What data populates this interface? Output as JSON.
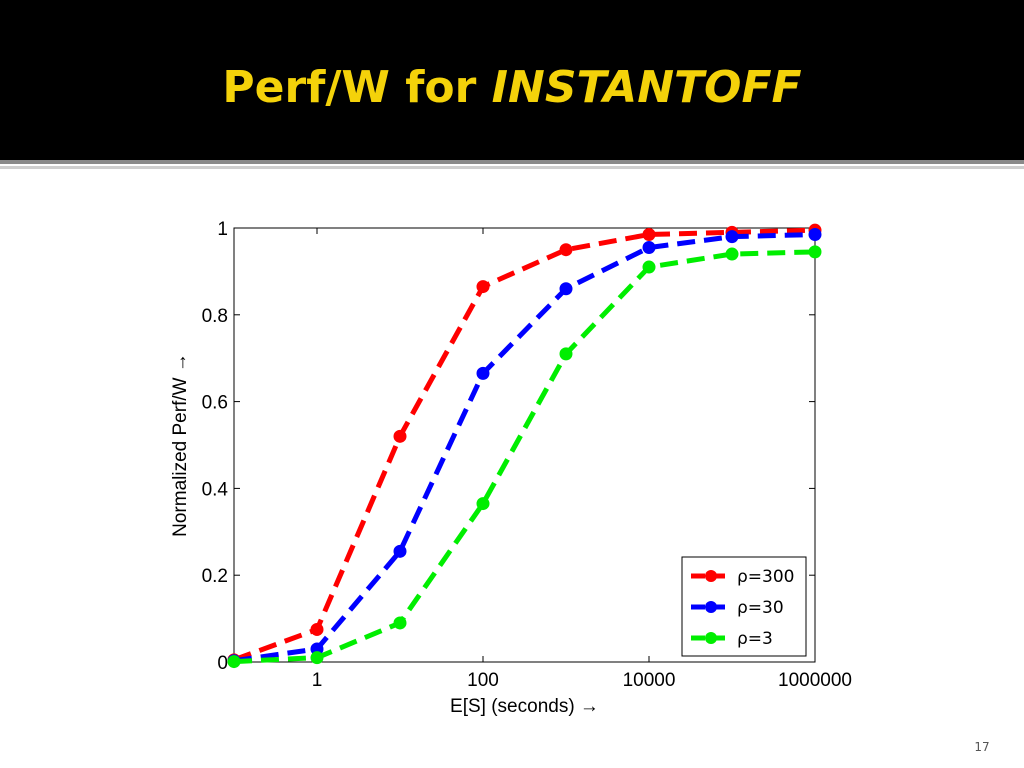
{
  "slide": {
    "title_prefix": "Perf/W for ",
    "title_emphasis": "INSTANTOFF",
    "number": "17"
  },
  "colors": {
    "title": "#f4d20a",
    "title_bar": "#000000",
    "series": [
      "#ff0000",
      "#0000ff",
      "#00ee00"
    ]
  },
  "chart_data": {
    "type": "line",
    "xscale": "log",
    "xlabel": "E[S] (seconds) →",
    "ylabel": "Normalized Perf/W →",
    "xlim": [
      0.1,
      1000000
    ],
    "ylim": [
      0,
      1
    ],
    "xticks": [
      1,
      100,
      10000,
      1000000
    ],
    "xtick_labels": [
      "1",
      "100",
      "10000",
      "1000000"
    ],
    "yticks": [
      0,
      0.2,
      0.4,
      0.6,
      0.8,
      1
    ],
    "ytick_labels": [
      "0",
      "0.2",
      "0.4",
      "0.6",
      "0.8",
      "1"
    ],
    "grid": false,
    "legend_position": "bottom-right",
    "x": [
      0.1,
      1,
      10,
      100,
      1000,
      10000,
      100000,
      1000000
    ],
    "series": [
      {
        "name": "ρ=300",
        "color": "#ff0000",
        "values": [
          0.005,
          0.075,
          0.52,
          0.865,
          0.95,
          0.985,
          0.99,
          0.995
        ]
      },
      {
        "name": "ρ=30",
        "color": "#0000ff",
        "values": [
          0.003,
          0.03,
          0.255,
          0.665,
          0.86,
          0.955,
          0.98,
          0.985
        ]
      },
      {
        "name": "ρ=3",
        "color": "#00ee00",
        "values": [
          0.001,
          0.01,
          0.09,
          0.365,
          0.71,
          0.91,
          0.94,
          0.945
        ]
      }
    ]
  }
}
